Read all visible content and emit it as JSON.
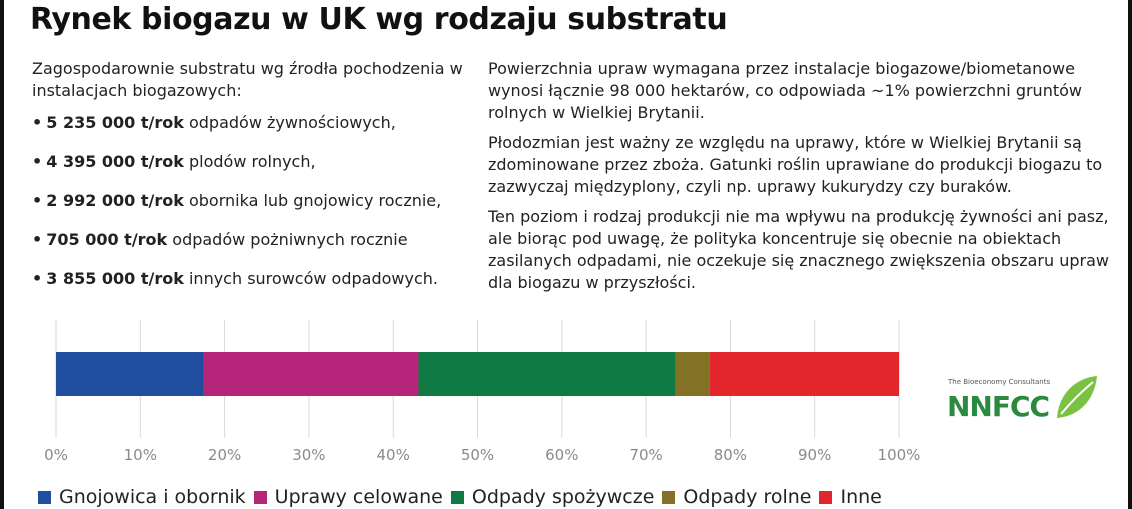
{
  "title": "Rynek biogazu w UK wg rodzaju substratu",
  "left": {
    "intro": "Zagospodarownie substratu wg źrodła pochodzenia w instalacjach biogazowych:",
    "items": [
      {
        "amount": "5 235 000 t/rok",
        "text": " odpadów żywnościowych,"
      },
      {
        "amount": "4 395 000 t/rok",
        "text": " plodów rolnych,"
      },
      {
        "amount": "2 992 000 t/rok",
        "text": " obornika lub gnojowicy rocznie,"
      },
      {
        "amount": "705 000 t/rok",
        "text": " odpadów pożniwnych rocznie"
      },
      {
        "amount": "3 855 000 t/rok",
        "text": " innych surowców odpadowych."
      }
    ]
  },
  "right": {
    "p1": "Powierzchnia upraw wymagana przez instalacje biogazowe/biometanowe wynosi łącznie 98 000 hektarów, co odpowiada ~1% powierzchni gruntów rolnych w Wielkiej Brytanii.",
    "p2": "Płodozmian jest ważny ze względu na uprawy, które w Wielkiej Brytanii są zdominowane przez zboża. Gatunki roślin uprawiane do produkcji biogazu to zazwyczaj międzyplony, czyli np. uprawy kukurydzy czy buraków.",
    "p3": "Ten poziom i rodzaj produkcji nie ma wpływu na produkcję żywności ani pasz, ale biorąc pod uwagę, że polityka koncentruje się obecnie na obiektach zasilanych odpadami, nie oczekuje się znacznego zwiększenia obszaru upraw dla biogazu w przyszłości."
  },
  "logo": {
    "tagline": "The Bioeconomy Consultants",
    "brand": "NNFCC"
  },
  "chart_data": {
    "type": "bar",
    "orientation": "horizontal-stacked-100",
    "xlim": [
      0,
      100
    ],
    "ticks": [
      "0%",
      "10%",
      "20%",
      "30%",
      "40%",
      "50%",
      "60%",
      "70%",
      "80%",
      "90%",
      "100%"
    ],
    "grid": true,
    "legend_position": "bottom",
    "series": [
      {
        "name": "Gnojowica i obornik",
        "value": 17.5,
        "color": "#1f4e9e"
      },
      {
        "name": "Uprawy celowane",
        "value": 25.5,
        "color": "#b5267a"
      },
      {
        "name": "Odpady spożywcze",
        "value": 30.5,
        "color": "#0f7a43"
      },
      {
        "name": "Odpady rolne",
        "value": 4.0,
        "color": "#837225"
      },
      {
        "name": "Inne",
        "value": 22.5,
        "color": "#e3262c"
      }
    ]
  }
}
